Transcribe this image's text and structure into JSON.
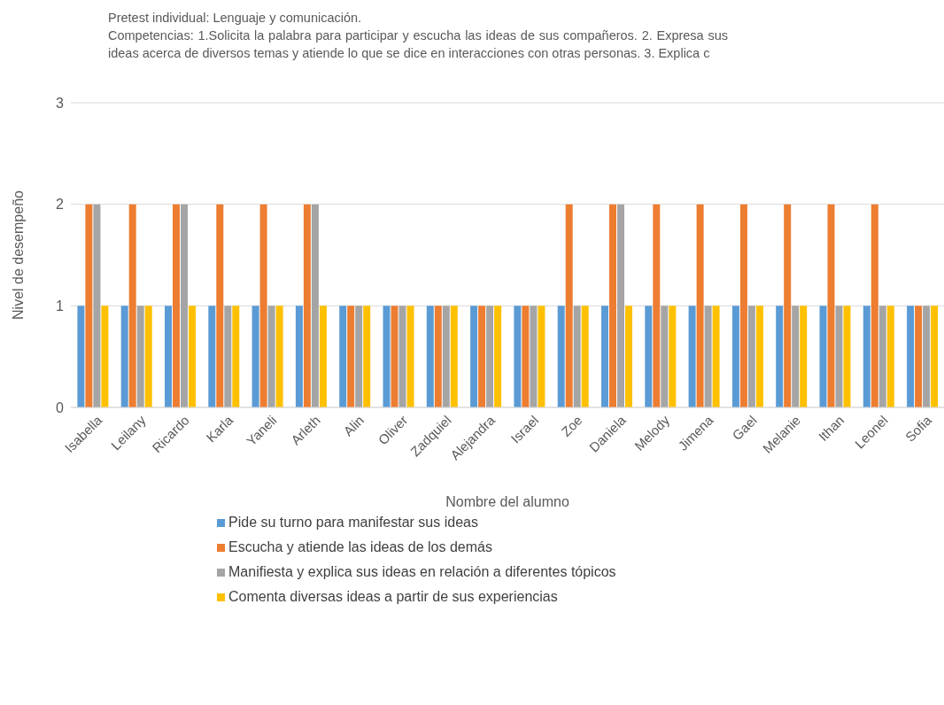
{
  "chart_data": {
    "type": "bar",
    "title": "Pretest individual: Lenguaje y comunicación.",
    "subtitle": "Competencias: 1.Solicita la palabra para participar y escucha las ideas de sus compañeros. 2. Expresa sus ideas acerca de diversos temas y atiende lo que se dice en interacciones con otras personas. 3. Explica c",
    "xlabel": "Nombre del alumno",
    "ylabel": "Nivel de desempeño",
    "categories": [
      "Isabella",
      "Leilany",
      "Ricardo",
      "Karla",
      "Yaneli",
      "Arleth",
      "Alin",
      "Oliver",
      "Zadquiel",
      "Alejandra",
      "Israel",
      "Zoe",
      "Daniela",
      "Melody",
      "Jimena",
      "Gael",
      "Melanie",
      "Ithan",
      "Leonel",
      "Sofia"
    ],
    "series": [
      {
        "name": "Pide su turno para manifestar sus ideas",
        "color": "#5b9bd5",
        "values": [
          1,
          1,
          1,
          1,
          1,
          1,
          1,
          1,
          1,
          1,
          1,
          1,
          1,
          1,
          1,
          1,
          1,
          1,
          1,
          1
        ]
      },
      {
        "name": "Escucha y atiende las ideas de los demás",
        "color": "#ed7d31",
        "values": [
          2,
          2,
          2,
          2,
          2,
          2,
          1,
          1,
          1,
          1,
          1,
          2,
          2,
          2,
          2,
          2,
          2,
          2,
          2,
          1
        ]
      },
      {
        "name": "Manifiesta y explica sus ideas en relación a diferentes tópicos",
        "color": "#a5a5a5",
        "values": [
          2,
          1,
          2,
          1,
          1,
          2,
          1,
          1,
          1,
          1,
          1,
          1,
          2,
          1,
          1,
          1,
          1,
          1,
          1,
          1
        ]
      },
      {
        "name": "Comenta diversas ideas a partir de sus experiencias",
        "color": "#ffc000",
        "values": [
          1,
          1,
          1,
          1,
          1,
          1,
          1,
          1,
          1,
          1,
          1,
          1,
          1,
          1,
          1,
          1,
          1,
          1,
          1,
          1
        ]
      }
    ],
    "ylim": [
      0,
      3
    ],
    "yticks": [
      0,
      1,
      2,
      3
    ],
    "grid": "y",
    "legend": "bottom"
  }
}
